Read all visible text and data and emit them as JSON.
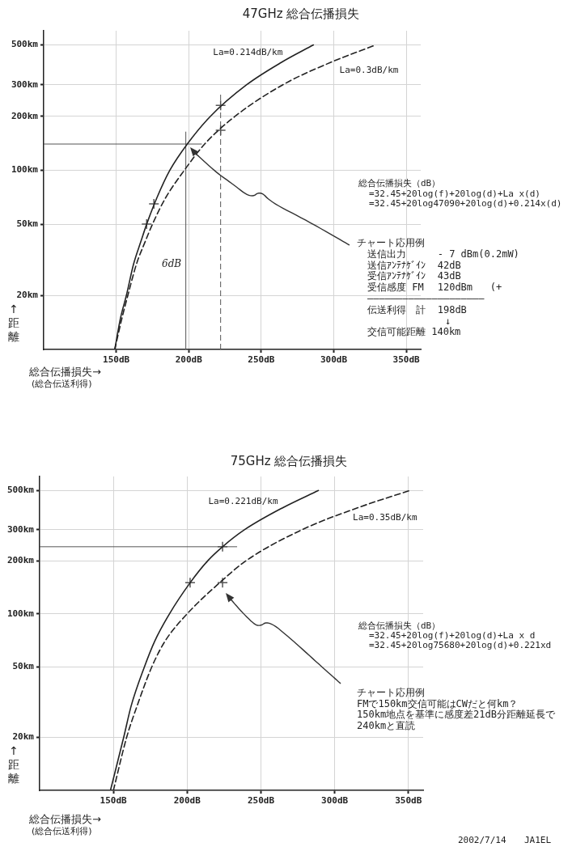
{
  "chart_data": [
    {
      "type": "line",
      "title": "47GHz 総合伝播損失",
      "xlabel": "総合伝播損失→\n(総合伝送利得)",
      "ylabel": "↑距離",
      "log": "y",
      "grid": true,
      "xlim": [
        100,
        360
      ],
      "xticks": [
        {
          "value": 150,
          "label": "150dB"
        },
        {
          "value": 200,
          "label": "200dB"
        },
        {
          "value": 250,
          "label": "250dB"
        },
        {
          "value": 300,
          "label": "300dB"
        },
        {
          "value": 350,
          "label": "350dB"
        }
      ],
      "ylim": [
        10,
        600
      ],
      "yticks": [
        {
          "value": 20,
          "label": "20km"
        },
        {
          "value": 50,
          "label": "50km"
        },
        {
          "value": 100,
          "label": "100km"
        },
        {
          "value": 200,
          "label": "200km"
        },
        {
          "value": 300,
          "label": "300km"
        },
        {
          "value": 500,
          "label": "500km"
        }
      ],
      "series": [
        {
          "name": "La=0.214dB/km",
          "color": "#222222",
          "line_style": "solid",
          "x": [
            149,
            153,
            157,
            162,
            167,
            171,
            178,
            187,
            199,
            215,
            240,
            264,
            286
          ],
          "values": [
            10,
            15,
            20,
            30,
            40,
            50,
            70,
            100,
            140,
            200,
            300,
            400,
            500
          ]
        },
        {
          "name": "La=0.3dB/km",
          "color": "#222222",
          "line_style": "dashed",
          "x": [
            149,
            154,
            158,
            164,
            170,
            175,
            184,
            197,
            211,
            232,
            265,
            298,
            329
          ],
          "values": [
            10,
            15,
            20,
            30,
            40,
            50,
            70,
            100,
            140,
            200,
            300,
            400,
            500
          ]
        },
        {
          "type": "scatter",
          "color": "#555555",
          "marker": "cross",
          "x": [
            222,
            222,
            176,
            171
          ],
          "values": [
            230,
            167,
            65,
            50
          ]
        }
      ],
      "ref_lines": [
        {
          "axis": "y",
          "value": 140,
          "color": "#555555"
        },
        {
          "axis": "x",
          "value": 198,
          "color": "#555555"
        },
        {
          "axis": "x",
          "value": 222,
          "color": "#555555",
          "line_style": "dashed"
        }
      ],
      "annotations": [
        "総合伝播損失（dB）\n=32.45+20log(f)+20log(d)+La x(d)\n=32.45+20log47090+20log(d)+0.214x(d)",
        "チャート応用例",
        "送信出力\t- 7 dBm(0.2mW)",
        "送信ｱﾝﾃﾅｹﾞｲﾝ\t42dB",
        "受信ｱﾝﾃﾅｹﾞｲﾝ\t43dB",
        "受信感度 FM\t120dBm   (+",
        "――――――――――――――――――――",
        "伝送利得　計\t198dB",
        "↓",
        "交信可能距離 140km",
        "6dB"
      ]
    },
    {
      "type": "line",
      "title": "75GHz 総合伝播損失",
      "xlabel": "総合伝播損失→\n(総合伝送利得)",
      "ylabel": "↑距離",
      "log": "y",
      "grid": true,
      "xlim": [
        100,
        360
      ],
      "xticks": [
        {
          "value": 150,
          "label": "150dB"
        },
        {
          "value": 200,
          "label": "200dB"
        },
        {
          "value": 250,
          "label": "250dB"
        },
        {
          "value": 300,
          "label": "300dB"
        },
        {
          "value": 350,
          "label": "350dB"
        }
      ],
      "ylim": [
        10,
        600
      ],
      "yticks": [
        {
          "value": 20,
          "label": "20km"
        },
        {
          "value": 50,
          "label": "50km"
        },
        {
          "value": 100,
          "label": "100km"
        },
        {
          "value": 200,
          "label": "200km"
        },
        {
          "value": 300,
          "label": "300km"
        },
        {
          "value": 500,
          "label": "500km"
        }
      ],
      "series": [
        {
          "name": "La=0.221dB/km",
          "color": "#222222",
          "line_style": "solid",
          "x": [
            148,
            157,
            162,
            171,
            178,
            188,
            202,
            214,
            224,
            239,
            265,
            289
          ],
          "values": [
            10,
            20,
            30,
            50,
            70,
            100,
            150,
            200,
            240,
            300,
            400,
            500
          ]
        },
        {
          "name": "La=0.35dB/km",
          "color": "#222222",
          "line_style": "dashed",
          "x": [
            150,
            159,
            166,
            176,
            185,
            200,
            222,
            240,
            278,
            316,
            351
          ],
          "values": [
            10,
            20,
            30,
            50,
            70,
            100,
            150,
            200,
            300,
            400,
            500
          ]
        },
        {
          "type": "scatter",
          "color": "#555555",
          "marker": "cross",
          "x": [
            202,
            224,
            224
          ],
          "values": [
            150,
            150,
            240
          ]
        }
      ],
      "ref_lines": [
        {
          "axis": "y",
          "value": 240,
          "color": "#555555"
        }
      ],
      "annotations": [
        "総合伝播損失（dB）\n=32.45+20log(f)+20log(d)+La x d\n=32.45+20log75680+20log(d)+0.221xd",
        "チャート応用例\nFMで150km交信可能はCWだと何km？\n150km地点を基準に感度差21dB分距離延長で\n240kmと直読",
        "2002/7/14",
        "JA1EL"
      ]
    }
  ]
}
